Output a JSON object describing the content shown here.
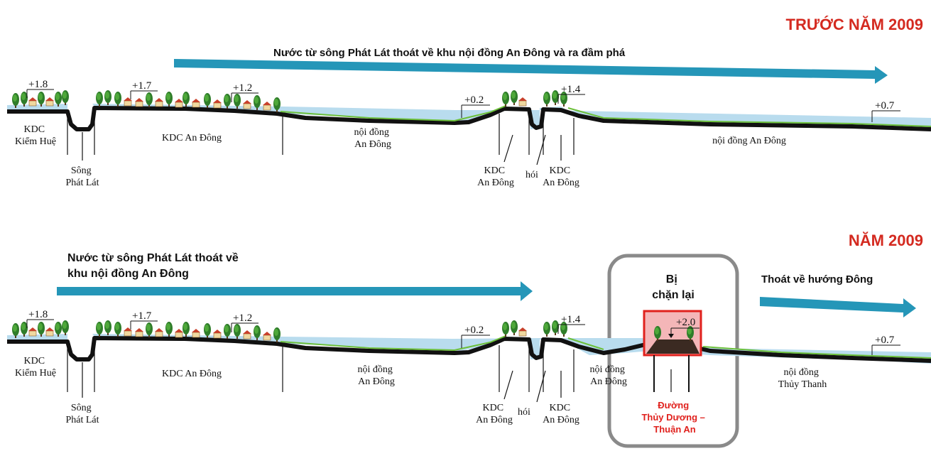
{
  "diagrams": [
    {
      "id": "before",
      "period_label": "TRƯỚC NĂM 2009",
      "flow_caption_lines": [
        "Nước từ sông Phát Lát thoát về khu nội đồng An Đông và ra đầm phá"
      ],
      "elevations": [
        "+1.8",
        "+1.7",
        "+1.2",
        "+0.2",
        "+1.4",
        "+0.7"
      ],
      "zones": [
        {
          "lines": [
            "KDC",
            "Kiểm Huệ"
          ]
        },
        {
          "lines": [
            "KDC An Đông"
          ]
        },
        {
          "lines": [
            "nội đồng",
            "An Đông"
          ]
        },
        {
          "lines": [
            "nội đồng An Đông"
          ]
        }
      ],
      "callouts": [
        {
          "lines": [
            "Sông",
            "Phát Lát"
          ]
        },
        {
          "lines": [
            "KDC",
            "An Đông"
          ]
        },
        {
          "lines": [
            "hói"
          ]
        },
        {
          "lines": [
            "KDC",
            "An Đông"
          ]
        }
      ]
    },
    {
      "id": "after",
      "period_label": "NĂM 2009",
      "flow_caption_lines": [
        "Nước từ sông Phát Lát thoát về",
        "khu nội đồng An Đông"
      ],
      "east_caption": "Thoát về hướng Đông",
      "blocked_caption_lines": [
        "Bị",
        "chặn lại"
      ],
      "elevations": [
        "+1.8",
        "+1.7",
        "+1.2",
        "+0.2",
        "+1.4",
        "+2.0",
        "+0.7"
      ],
      "zones": [
        {
          "lines": [
            "KDC",
            "Kiểm Huệ"
          ]
        },
        {
          "lines": [
            "KDC An Đông"
          ]
        },
        {
          "lines": [
            "nội đồng",
            "An Đông"
          ]
        },
        {
          "lines": [
            "nội đồng",
            "An Đông"
          ]
        },
        {
          "lines": [
            "nội đồng",
            "Thủy Thanh"
          ]
        }
      ],
      "callouts": [
        {
          "lines": [
            "Sông",
            "Phát Lát"
          ]
        },
        {
          "lines": [
            "KDC",
            "An Đông"
          ]
        },
        {
          "lines": [
            "hói"
          ]
        },
        {
          "lines": [
            "KDC",
            "An Đông"
          ]
        }
      ],
      "road_label_lines": [
        "Đường",
        "Thủy Dương –",
        "Thuận An"
      ]
    }
  ],
  "colors": {
    "water": "#b9dcee",
    "flow_arrow": "#2596b8",
    "ground": "#111111",
    "grass": "#6cbf3a",
    "header_red": "#d42a20",
    "highlight_red": "#e0211d",
    "highlight_fill": "#f4b6b8",
    "box_border": "#8a8a8a"
  },
  "icons": [
    "tree-icon",
    "house-icon"
  ]
}
